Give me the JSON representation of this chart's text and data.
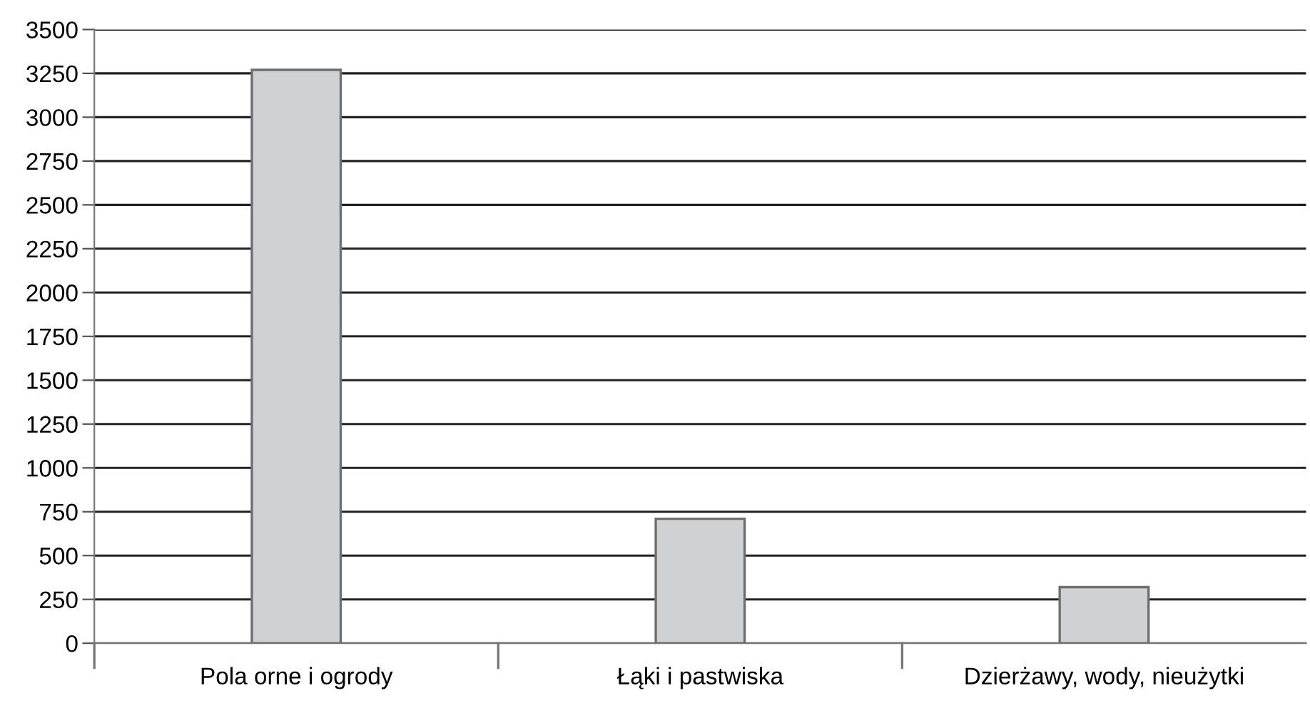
{
  "chart_data": {
    "type": "bar",
    "categories": [
      "Pola orne i ogrody",
      "Łąki i pastwiska",
      "Dzierżawy, wody, nieużytki"
    ],
    "values": [
      3270,
      710,
      320
    ],
    "color": "#d0d1d3",
    "ylim": [
      0,
      3500
    ],
    "yticks": [
      0,
      250,
      500,
      750,
      1000,
      1250,
      1500,
      1750,
      2000,
      2250,
      2500,
      2750,
      3000,
      3250,
      3500
    ],
    "grid": "y",
    "legend": false
  }
}
